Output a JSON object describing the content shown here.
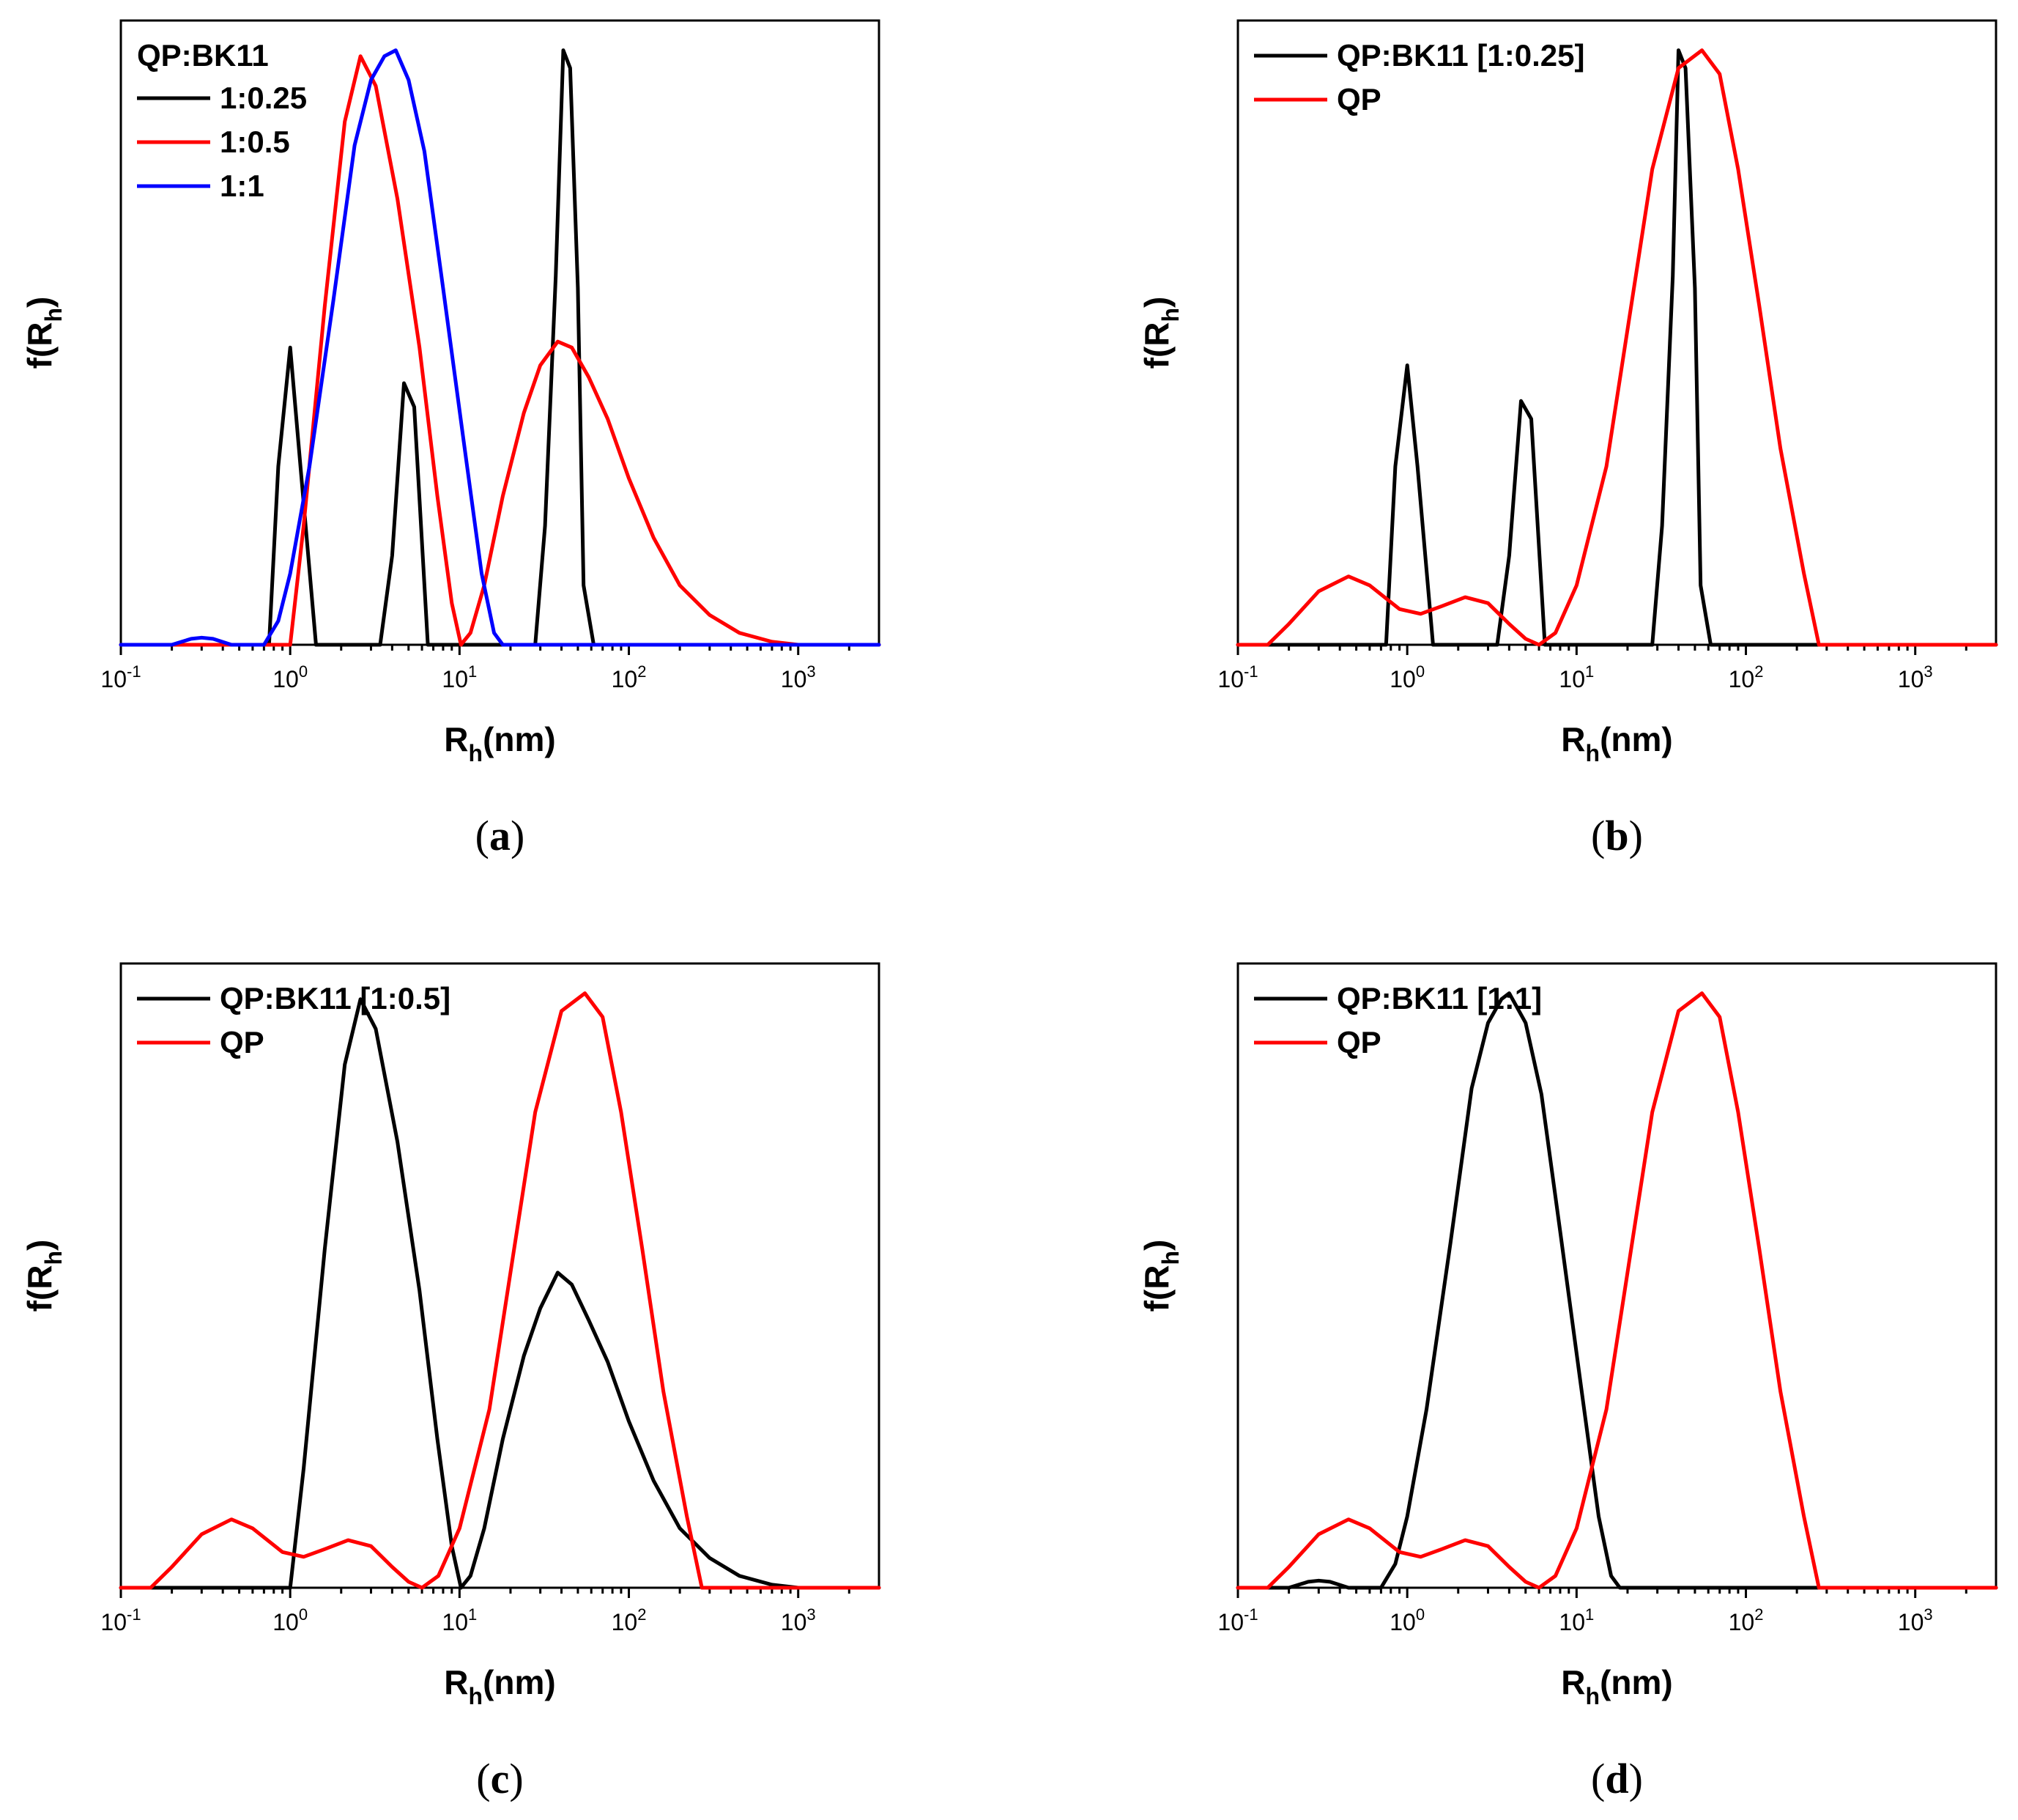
{
  "chart_data": [
    {
      "type": "line",
      "panel": "a",
      "caption_letter": "a",
      "xscale": "log",
      "xlim": [
        0.1,
        3000
      ],
      "ylim": [
        0,
        1.05
      ],
      "xlabel": "R",
      "xlabel_sub": "h",
      "xlabel_unit": "(nm)",
      "ylabel": "f(R",
      "ylabel_sub": "h",
      "ylabel_close": ")",
      "xticks": [
        {
          "base": "10",
          "exp": "-1",
          "v": 0.1
        },
        {
          "base": "10",
          "exp": "0",
          "v": 1
        },
        {
          "base": "10",
          "exp": "1",
          "v": 10
        },
        {
          "base": "10",
          "exp": "2",
          "v": 100
        },
        {
          "base": "10",
          "exp": "3",
          "v": 1000
        }
      ],
      "legend_title": "QP:BK11",
      "series": [
        {
          "name": "1:0.25",
          "color": "#000000",
          "points": [
            [
              0.1,
              0
            ],
            [
              0.75,
              0
            ],
            [
              0.85,
              0.3
            ],
            [
              1.0,
              0.5
            ],
            [
              1.15,
              0.3
            ],
            [
              1.42,
              0
            ],
            [
              3.4,
              0
            ],
            [
              4.0,
              0.15
            ],
            [
              4.7,
              0.44
            ],
            [
              5.4,
              0.4
            ],
            [
              6.5,
              0
            ],
            [
              28,
              0
            ],
            [
              32,
              0.2
            ],
            [
              37,
              0.62
            ],
            [
              41,
              1.0
            ],
            [
              45,
              0.97
            ],
            [
              50,
              0.6
            ],
            [
              54,
              0.1
            ],
            [
              62,
              0
            ],
            [
              3000,
              0
            ]
          ]
        },
        {
          "name": "1:0.5",
          "color": "#ff0000",
          "points": [
            [
              0.1,
              0
            ],
            [
              1.0,
              0
            ],
            [
              1.2,
              0.2
            ],
            [
              1.6,
              0.57
            ],
            [
              2.1,
              0.88
            ],
            [
              2.6,
              0.99
            ],
            [
              3.2,
              0.94
            ],
            [
              4.3,
              0.75
            ],
            [
              5.8,
              0.5
            ],
            [
              7.4,
              0.25
            ],
            [
              9.0,
              0.07
            ],
            [
              10.2,
              0
            ],
            [
              11.6,
              0.02
            ],
            [
              14,
              0.1
            ],
            [
              18,
              0.25
            ],
            [
              24,
              0.39
            ],
            [
              30,
              0.47
            ],
            [
              38,
              0.51
            ],
            [
              46,
              0.5
            ],
            [
              58,
              0.45
            ],
            [
              75,
              0.38
            ],
            [
              100,
              0.28
            ],
            [
              140,
              0.18
            ],
            [
              200,
              0.1
            ],
            [
              300,
              0.05
            ],
            [
              450,
              0.02
            ],
            [
              700,
              0.005
            ],
            [
              1000,
              0
            ],
            [
              3000,
              0
            ]
          ]
        },
        {
          "name": "1:1",
          "color": "#0000ff",
          "points": [
            [
              0.1,
              0
            ],
            [
              0.2,
              0
            ],
            [
              0.26,
              0.01
            ],
            [
              0.3,
              0.012
            ],
            [
              0.35,
              0.01
            ],
            [
              0.45,
              0
            ],
            [
              0.7,
              0
            ],
            [
              0.85,
              0.04
            ],
            [
              1.0,
              0.12
            ],
            [
              1.3,
              0.3
            ],
            [
              1.8,
              0.58
            ],
            [
              2.4,
              0.84
            ],
            [
              3.0,
              0.95
            ],
            [
              3.6,
              0.99
            ],
            [
              4.2,
              1.0
            ],
            [
              5.0,
              0.95
            ],
            [
              6.2,
              0.83
            ],
            [
              8.0,
              0.6
            ],
            [
              10.5,
              0.35
            ],
            [
              13.5,
              0.12
            ],
            [
              16,
              0.02
            ],
            [
              18,
              0
            ],
            [
              3000,
              0
            ]
          ]
        }
      ]
    },
    {
      "type": "line",
      "panel": "b",
      "caption_letter": "b",
      "xscale": "log",
      "xlim": [
        0.1,
        3000
      ],
      "ylim": [
        0,
        1.05
      ],
      "xlabel": "R",
      "xlabel_sub": "h",
      "xlabel_unit": "(nm)",
      "ylabel": "f(R",
      "ylabel_sub": "h",
      "ylabel_close": ")",
      "xticks": [
        {
          "base": "10",
          "exp": "-1",
          "v": 0.1
        },
        {
          "base": "10",
          "exp": "0",
          "v": 1
        },
        {
          "base": "10",
          "exp": "1",
          "v": 10
        },
        {
          "base": "10",
          "exp": "2",
          "v": 100
        },
        {
          "base": "10",
          "exp": "3",
          "v": 1000
        }
      ],
      "legend_title": "",
      "series": [
        {
          "name": "QP:BK11 [1:0.25]",
          "color": "#000000",
          "points": [
            [
              0.1,
              0
            ],
            [
              0.75,
              0
            ],
            [
              0.85,
              0.3
            ],
            [
              1.0,
              0.47
            ],
            [
              1.15,
              0.3
            ],
            [
              1.42,
              0
            ],
            [
              3.4,
              0
            ],
            [
              4.0,
              0.15
            ],
            [
              4.7,
              0.41
            ],
            [
              5.4,
              0.38
            ],
            [
              6.5,
              0
            ],
            [
              28,
              0
            ],
            [
              32,
              0.2
            ],
            [
              37,
              0.62
            ],
            [
              40,
              1.0
            ],
            [
              44,
              0.97
            ],
            [
              50,
              0.6
            ],
            [
              54,
              0.1
            ],
            [
              62,
              0
            ],
            [
              3000,
              0
            ]
          ]
        },
        {
          "name": "QP",
          "color": "#ff0000",
          "points": [
            [
              0.1,
              0
            ],
            [
              0.15,
              0
            ],
            [
              0.2,
              0.035
            ],
            [
              0.3,
              0.09
            ],
            [
              0.45,
              0.115
            ],
            [
              0.6,
              0.1
            ],
            [
              0.9,
              0.06
            ],
            [
              1.2,
              0.052
            ],
            [
              1.6,
              0.065
            ],
            [
              2.2,
              0.08
            ],
            [
              3.0,
              0.07
            ],
            [
              4.0,
              0.035
            ],
            [
              5.0,
              0.01
            ],
            [
              6.0,
              0
            ],
            [
              7.5,
              0.02
            ],
            [
              10,
              0.1
            ],
            [
              15,
              0.3
            ],
            [
              20,
              0.53
            ],
            [
              28,
              0.8
            ],
            [
              40,
              0.97
            ],
            [
              55,
              1.0
            ],
            [
              70,
              0.96
            ],
            [
              90,
              0.8
            ],
            [
              120,
              0.57
            ],
            [
              160,
              0.33
            ],
            [
              220,
              0.12
            ],
            [
              270,
              0
            ],
            [
              3000,
              0
            ]
          ]
        }
      ]
    },
    {
      "type": "line",
      "panel": "c",
      "caption_letter": "c",
      "xscale": "log",
      "xlim": [
        0.1,
        3000
      ],
      "ylim": [
        0,
        1.05
      ],
      "xlabel": "R",
      "xlabel_sub": "h",
      "xlabel_unit": "(nm)",
      "ylabel": "f(R",
      "ylabel_sub": "h",
      "ylabel_close": ")",
      "xticks": [
        {
          "base": "10",
          "exp": "-1",
          "v": 0.1
        },
        {
          "base": "10",
          "exp": "0",
          "v": 1
        },
        {
          "base": "10",
          "exp": "1",
          "v": 10
        },
        {
          "base": "10",
          "exp": "2",
          "v": 100
        },
        {
          "base": "10",
          "exp": "3",
          "v": 1000
        }
      ],
      "legend_title": "",
      "series": [
        {
          "name": "QP:BK11 [1:0.5]",
          "color": "#000000",
          "points": [
            [
              0.1,
              0
            ],
            [
              1.0,
              0
            ],
            [
              1.2,
              0.2
            ],
            [
              1.6,
              0.57
            ],
            [
              2.1,
              0.88
            ],
            [
              2.6,
              0.99
            ],
            [
              3.2,
              0.94
            ],
            [
              4.3,
              0.75
            ],
            [
              5.8,
              0.5
            ],
            [
              7.4,
              0.25
            ],
            [
              9.0,
              0.07
            ],
            [
              10.2,
              0
            ],
            [
              11.6,
              0.02
            ],
            [
              14,
              0.1
            ],
            [
              18,
              0.25
            ],
            [
              24,
              0.39
            ],
            [
              30,
              0.47
            ],
            [
              38,
              0.53
            ],
            [
              46,
              0.51
            ],
            [
              58,
              0.45
            ],
            [
              75,
              0.38
            ],
            [
              100,
              0.28
            ],
            [
              140,
              0.18
            ],
            [
              200,
              0.1
            ],
            [
              300,
              0.05
            ],
            [
              450,
              0.02
            ],
            [
              700,
              0.005
            ],
            [
              1000,
              0
            ],
            [
              3000,
              0
            ]
          ]
        },
        {
          "name": "QP",
          "color": "#ff0000",
          "points": [
            [
              0.1,
              0
            ],
            [
              0.15,
              0
            ],
            [
              0.2,
              0.035
            ],
            [
              0.3,
              0.09
            ],
            [
              0.45,
              0.115
            ],
            [
              0.6,
              0.1
            ],
            [
              0.9,
              0.06
            ],
            [
              1.2,
              0.052
            ],
            [
              1.6,
              0.065
            ],
            [
              2.2,
              0.08
            ],
            [
              3.0,
              0.07
            ],
            [
              4.0,
              0.035
            ],
            [
              5.0,
              0.01
            ],
            [
              6.0,
              0
            ],
            [
              7.5,
              0.02
            ],
            [
              10,
              0.1
            ],
            [
              15,
              0.3
            ],
            [
              20,
              0.53
            ],
            [
              28,
              0.8
            ],
            [
              40,
              0.97
            ],
            [
              55,
              1.0
            ],
            [
              70,
              0.96
            ],
            [
              90,
              0.8
            ],
            [
              120,
              0.57
            ],
            [
              160,
              0.33
            ],
            [
              220,
              0.12
            ],
            [
              270,
              0
            ],
            [
              3000,
              0
            ]
          ]
        }
      ]
    },
    {
      "type": "line",
      "panel": "d",
      "caption_letter": "d",
      "xscale": "log",
      "xlim": [
        0.1,
        3000
      ],
      "ylim": [
        0,
        1.05
      ],
      "xlabel": "R",
      "xlabel_sub": "h",
      "xlabel_unit": "(nm)",
      "ylabel": "f(R",
      "ylabel_sub": "h",
      "ylabel_close": ")",
      "xticks": [
        {
          "base": "10",
          "exp": "-1",
          "v": 0.1
        },
        {
          "base": "10",
          "exp": "0",
          "v": 1
        },
        {
          "base": "10",
          "exp": "1",
          "v": 10
        },
        {
          "base": "10",
          "exp": "2",
          "v": 100
        },
        {
          "base": "10",
          "exp": "3",
          "v": 1000
        }
      ],
      "legend_title": "",
      "series": [
        {
          "name": "QP:BK11 [1:1]",
          "color": "#000000",
          "points": [
            [
              0.1,
              0
            ],
            [
              0.2,
              0
            ],
            [
              0.26,
              0.01
            ],
            [
              0.3,
              0.012
            ],
            [
              0.35,
              0.01
            ],
            [
              0.45,
              0
            ],
            [
              0.7,
              0
            ],
            [
              0.85,
              0.04
            ],
            [
              1.0,
              0.12
            ],
            [
              1.3,
              0.3
            ],
            [
              1.8,
              0.58
            ],
            [
              2.4,
              0.84
            ],
            [
              3.0,
              0.95
            ],
            [
              3.6,
              0.99
            ],
            [
              4.0,
              1.0
            ],
            [
              5.0,
              0.95
            ],
            [
              6.2,
              0.83
            ],
            [
              8.0,
              0.6
            ],
            [
              10.5,
              0.35
            ],
            [
              13.5,
              0.12
            ],
            [
              16,
              0.02
            ],
            [
              18,
              0
            ],
            [
              3000,
              0
            ]
          ]
        },
        {
          "name": "QP",
          "color": "#ff0000",
          "points": [
            [
              0.1,
              0
            ],
            [
              0.15,
              0
            ],
            [
              0.2,
              0.035
            ],
            [
              0.3,
              0.09
            ],
            [
              0.45,
              0.115
            ],
            [
              0.6,
              0.1
            ],
            [
              0.9,
              0.06
            ],
            [
              1.2,
              0.052
            ],
            [
              1.6,
              0.065
            ],
            [
              2.2,
              0.08
            ],
            [
              3.0,
              0.07
            ],
            [
              4.0,
              0.035
            ],
            [
              5.0,
              0.01
            ],
            [
              6.0,
              0
            ],
            [
              7.5,
              0.02
            ],
            [
              10,
              0.1
            ],
            [
              15,
              0.3
            ],
            [
              20,
              0.53
            ],
            [
              28,
              0.8
            ],
            [
              40,
              0.97
            ],
            [
              55,
              1.0
            ],
            [
              70,
              0.96
            ],
            [
              90,
              0.8
            ],
            [
              120,
              0.57
            ],
            [
              160,
              0.33
            ],
            [
              220,
              0.12
            ],
            [
              270,
              0
            ],
            [
              3000,
              0
            ]
          ]
        }
      ]
    }
  ]
}
